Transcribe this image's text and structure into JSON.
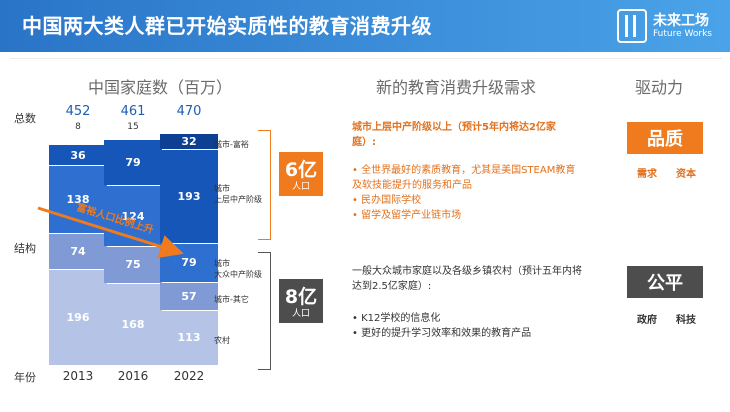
{
  "header": {
    "title": "中国两大类人群已开始实质性的教育消费升级",
    "logo_cn": "未来工场",
    "logo_en": "Future Works"
  },
  "columns": {
    "left": "中国家庭数（百万）",
    "middle": "新的教育消费升级需求",
    "right": "驱动力"
  },
  "side_labels": {
    "total": "总数",
    "structure": "结构",
    "year": "年份"
  },
  "chart_data": {
    "type": "bar",
    "stacked": true,
    "title": "中国家庭数（百万）",
    "categories": [
      "2013",
      "2016",
      "2022"
    ],
    "totals": [
      452,
      461,
      470
    ],
    "series": [
      {
        "name": "城市-富裕",
        "values": [
          8,
          15,
          32
        ]
      },
      {
        "name": "城市 上层中产阶级",
        "values": [
          36,
          79,
          193
        ]
      },
      {
        "name": "城市 大众中产阶级",
        "values": [
          138,
          124,
          79
        ]
      },
      {
        "name": "城市-其它",
        "values": [
          74,
          75,
          57
        ]
      },
      {
        "name": "农村",
        "values": [
          196,
          168,
          113
        ]
      }
    ],
    "arrow_annotation": "富裕人口比例上升"
  },
  "category_labels": [
    "城市-富裕",
    "城市\n上层中产阶级",
    "城市\n大众中产阶级",
    "城市-其它",
    "农村"
  ],
  "population": [
    {
      "value": "6亿",
      "unit": "人口",
      "color": "#ef7b1e"
    },
    {
      "value": "8亿",
      "unit": "人口",
      "color": "#4d4d4d"
    }
  ],
  "needs": {
    "group1_title": "城市上层中产阶级以上（预计5年内将达2亿家庭）:",
    "group1_items": [
      "全世界最好的素质教育，尤其是美国STEAM教育及软技能提升的服务和产品",
      "民办国际学校",
      "留学及留学产业链市场"
    ],
    "group2_title": "一般大众城市家庭以及各级乡镇农村（预计五年内将达到2.5亿家庭）:",
    "group2_items": [
      "K12学校的信息化",
      "更好的提升学习效率和效果的教育产品"
    ]
  },
  "drivers": [
    {
      "label": "品质",
      "subs": [
        "需求",
        "资本"
      ],
      "color": "#ef7b1e"
    },
    {
      "label": "公平",
      "subs": [
        "政府",
        "科技"
      ],
      "color": "#4d4d4d"
    }
  ]
}
